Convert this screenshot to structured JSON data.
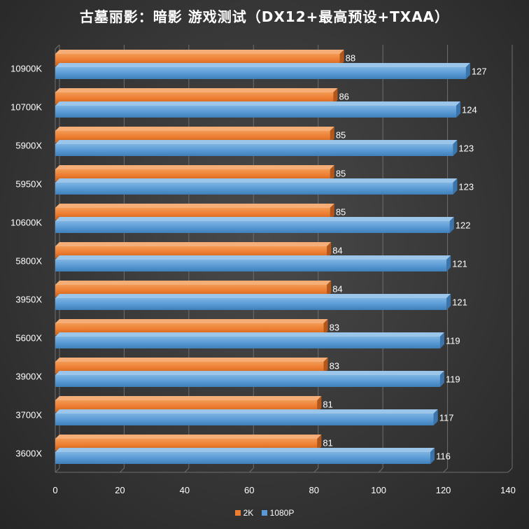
{
  "chart_data": {
    "type": "bar",
    "orientation": "horizontal",
    "title": "古墓丽影：暗影 游戏测试（DX12+最高预设+TXAA）",
    "categories": [
      "10900K",
      "10700K",
      "5900X",
      "5950X",
      "10600K",
      "5800X",
      "3950X",
      "5600X",
      "3900X",
      "3700X",
      "3600X"
    ],
    "series": [
      {
        "name": "2K",
        "color": "#ED7D31",
        "values": [
          88,
          86,
          85,
          85,
          85,
          84,
          84,
          83,
          83,
          81,
          81
        ]
      },
      {
        "name": "1080P",
        "color": "#5B9BD5",
        "values": [
          127,
          124,
          123,
          123,
          122,
          121,
          121,
          119,
          119,
          117,
          116
        ]
      }
    ],
    "xlim": [
      0,
      140
    ],
    "xticks": [
      "0",
      "20",
      "40",
      "60",
      "80",
      "100",
      "120",
      "140"
    ],
    "grid": true,
    "legend_position": "bottom"
  }
}
